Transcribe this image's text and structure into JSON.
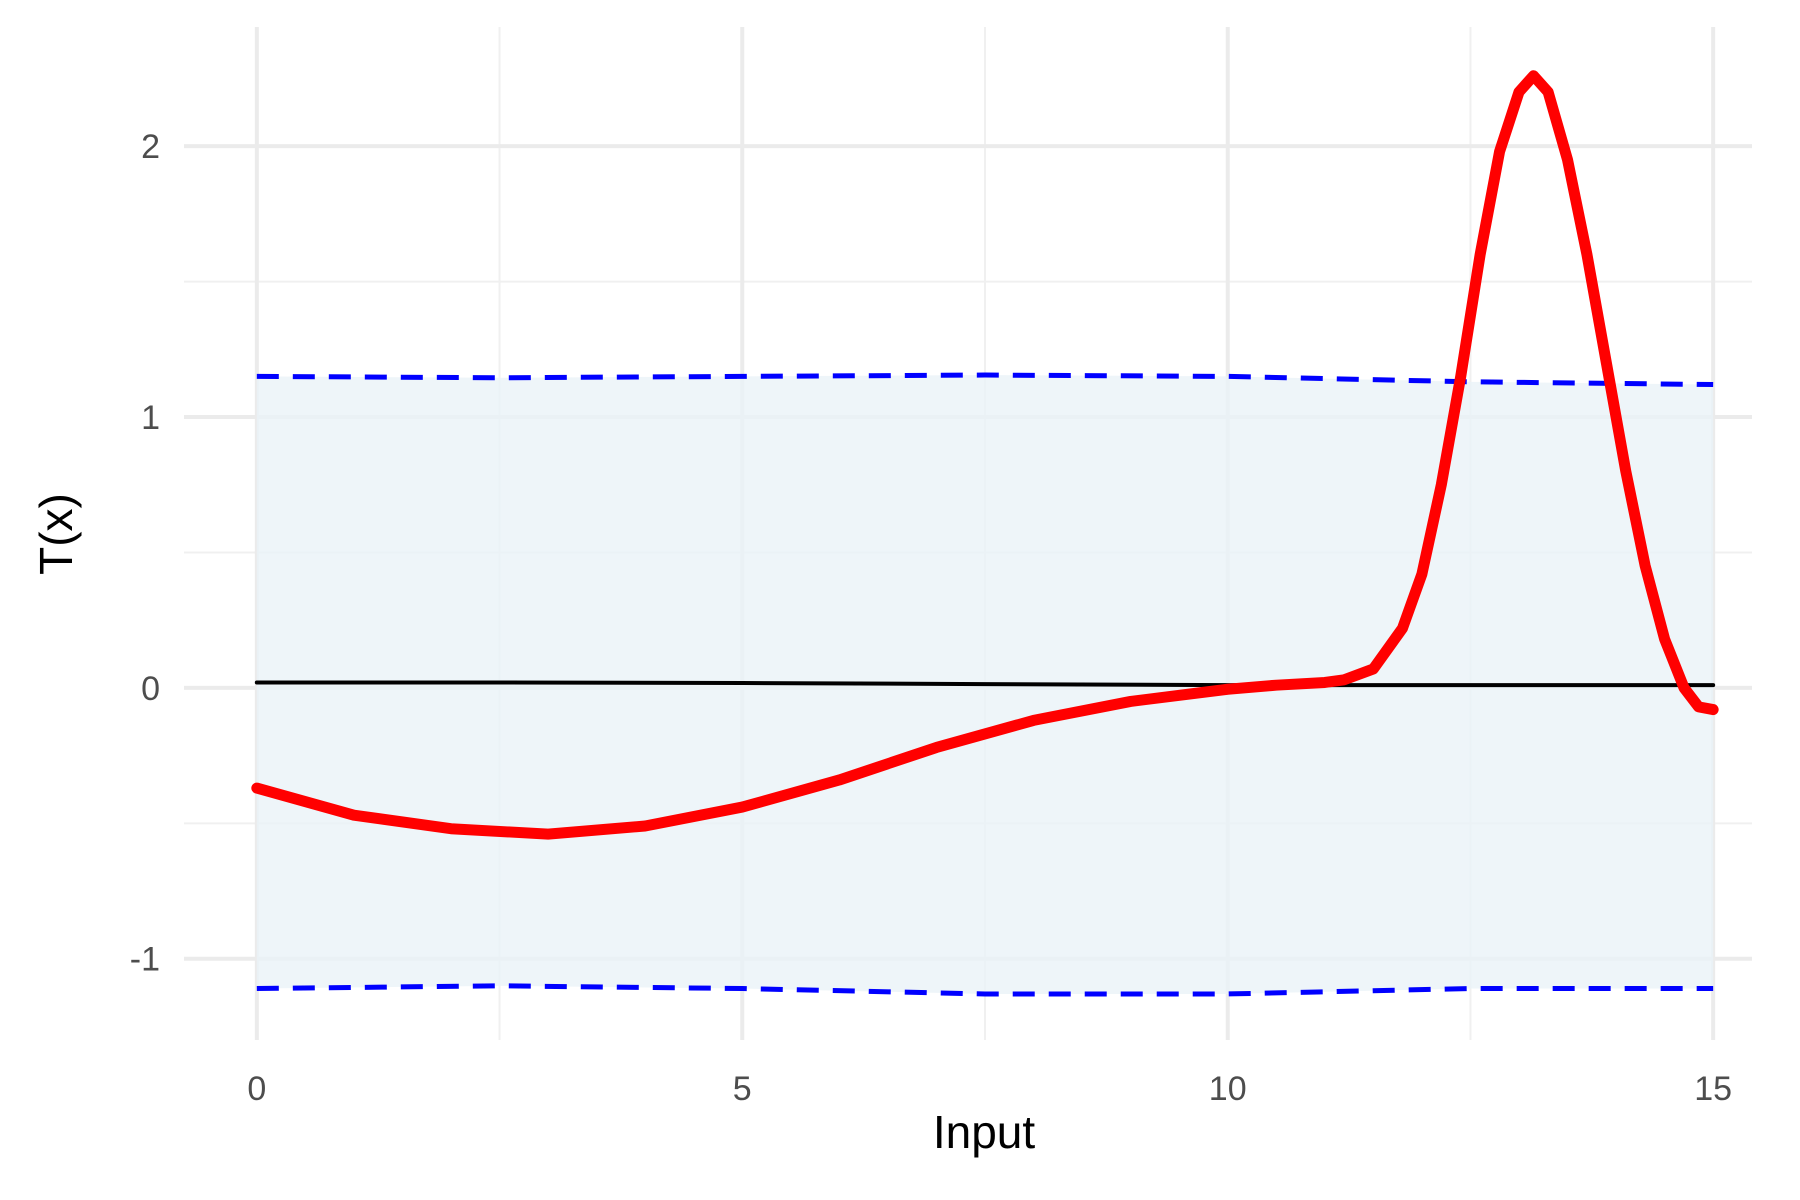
{
  "chart_data": {
    "type": "line",
    "xlabel": "Input",
    "ylabel": "T(x)",
    "xlim": [
      -0.75,
      15.4
    ],
    "ylim": [
      -1.3,
      2.44
    ],
    "xticks": [
      0,
      5,
      10,
      15
    ],
    "yticks": [
      -1,
      0,
      1,
      2
    ],
    "xminor": [
      2.5,
      7.5,
      12.5
    ],
    "yminor": [
      -0.5,
      0.5,
      1.5
    ],
    "grid": true,
    "band_color": "#eaf3f8",
    "series": [
      {
        "color": "#000000",
        "style": "solid",
        "width": 4,
        "x": [
          0,
          2.5,
          5,
          7.5,
          10,
          12.5,
          15
        ],
        "values": [
          0.02,
          0.02,
          0.018,
          0.014,
          0.01,
          0.01,
          0.01
        ]
      },
      {
        "color": "#0000ff",
        "style": "dashed",
        "width": 5,
        "x": [
          0,
          2.5,
          5,
          7.5,
          10,
          12.5,
          15
        ],
        "values": [
          1.15,
          1.145,
          1.15,
          1.155,
          1.15,
          1.13,
          1.12
        ]
      },
      {
        "color": "#0000ff",
        "style": "dashed",
        "width": 5,
        "x": [
          0,
          2.5,
          5,
          7.5,
          10,
          12.5,
          15
        ],
        "values": [
          -1.11,
          -1.1,
          -1.11,
          -1.13,
          -1.13,
          -1.11,
          -1.11
        ]
      },
      {
        "color": "#ff0000",
        "style": "solid",
        "width": 11,
        "x": [
          0,
          1,
          2,
          3,
          4,
          5,
          6,
          7,
          8,
          9,
          10,
          10.5,
          11,
          11.2,
          11.5,
          11.8,
          12.0,
          12.2,
          12.4,
          12.6,
          12.8,
          13.0,
          13.15,
          13.3,
          13.5,
          13.7,
          13.9,
          14.1,
          14.3,
          14.5,
          14.7,
          14.85,
          15
        ],
        "values": [
          -0.37,
          -0.47,
          -0.52,
          -0.54,
          -0.51,
          -0.44,
          -0.34,
          -0.22,
          -0.12,
          -0.05,
          -0.005,
          0.01,
          0.02,
          0.03,
          0.07,
          0.22,
          0.42,
          0.75,
          1.15,
          1.6,
          1.98,
          2.2,
          2.26,
          2.2,
          1.95,
          1.6,
          1.2,
          0.8,
          0.45,
          0.18,
          0.0,
          -0.07,
          -0.08
        ]
      }
    ]
  }
}
